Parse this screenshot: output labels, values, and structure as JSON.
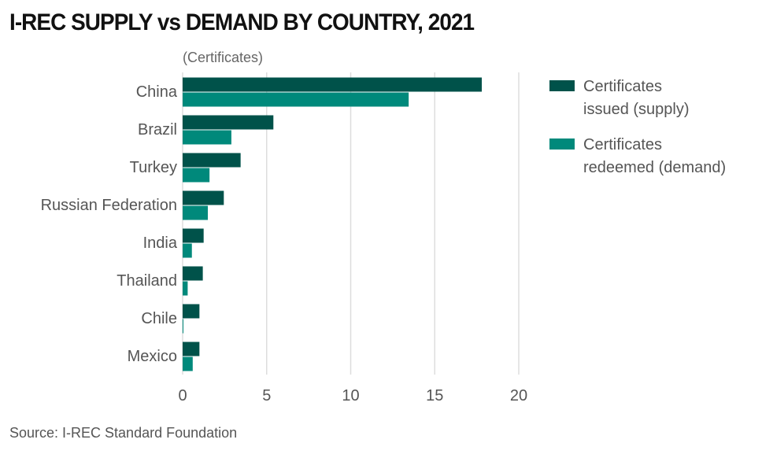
{
  "title": "I-REC SUPPLY vs DEMAND BY COUNTRY, 2021",
  "source": "Source: I-REC Standard Foundation",
  "colors": {
    "supply": "#00524a",
    "demand": "#00897b",
    "grid": "#dddddd",
    "text": "#555555"
  },
  "chart_data": {
    "type": "bar",
    "orientation": "horizontal",
    "title": "I-REC SUPPLY vs DEMAND BY COUNTRY, 2021",
    "unit_label": "(Certificates)",
    "xlabel": "",
    "ylabel": "",
    "xlim": [
      0,
      20
    ],
    "xticks": [
      0,
      5,
      10,
      15,
      20
    ],
    "grid": true,
    "legend_position": "right",
    "categories": [
      "China",
      "Brazil",
      "Turkey",
      "Russian Federation",
      "India",
      "Thailand",
      "Chile",
      "Mexico"
    ],
    "series": [
      {
        "name": "Certificates issued  (supply)",
        "legend_lines": [
          "Certificates",
          "issued  (supply)"
        ],
        "color": "#00524a",
        "values": [
          17.8,
          5.4,
          3.45,
          2.45,
          1.25,
          1.2,
          1.0,
          1.0
        ]
      },
      {
        "name": "Certificates redeemed (demand)",
        "legend_lines": [
          "Certificates",
          "redeemed (demand)"
        ],
        "color": "#00897b",
        "values": [
          13.45,
          2.9,
          1.6,
          1.5,
          0.55,
          0.3,
          0.02,
          0.6
        ]
      }
    ]
  }
}
